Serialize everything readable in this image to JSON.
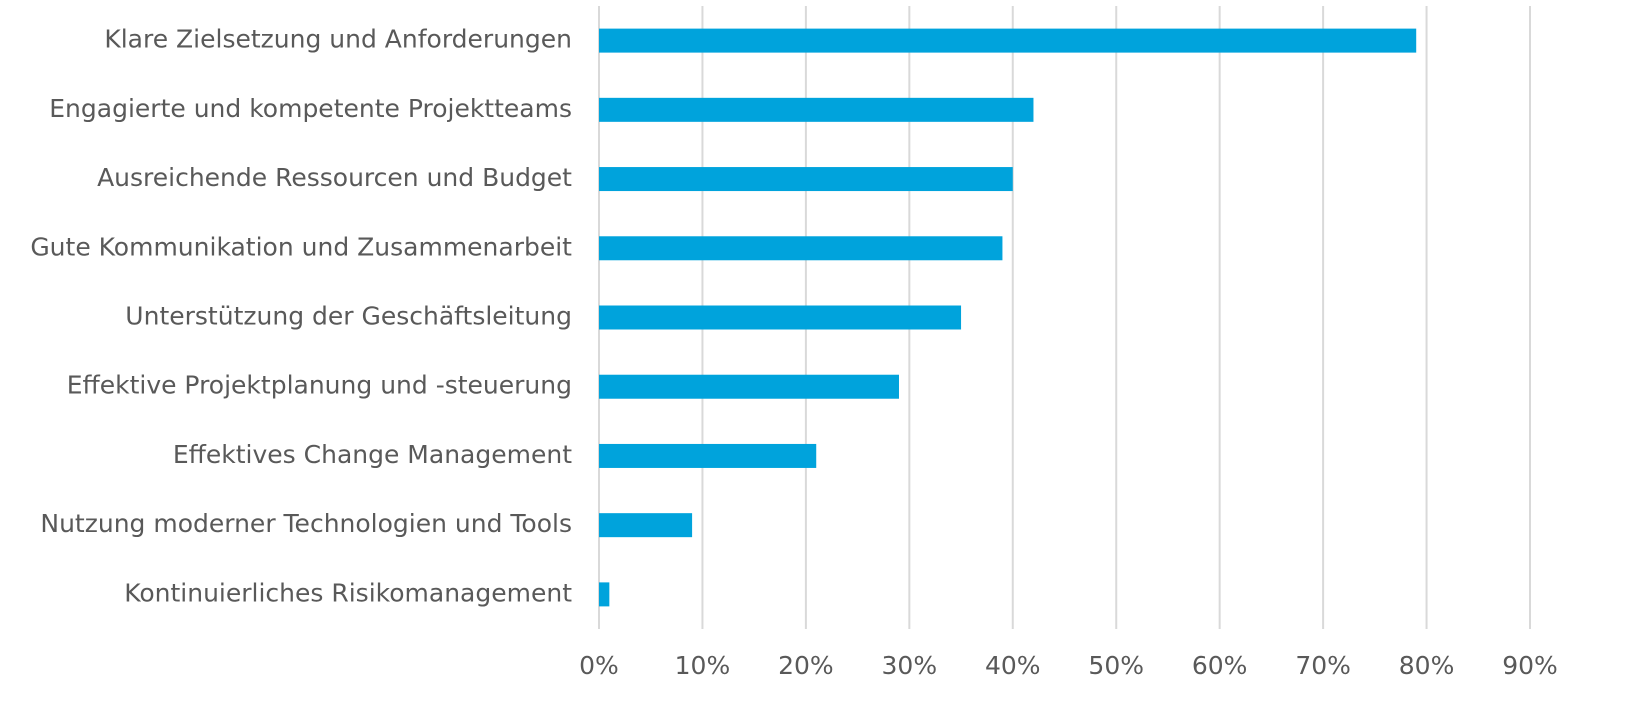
{
  "chart_data": {
    "type": "bar",
    "orientation": "horizontal",
    "categories": [
      "Klare Zielsetzung und Anforderungen",
      "Engagierte und kompetente Projektteams",
      "Ausreichende Ressourcen und Budget",
      "Gute Kommunikation und Zusammenarbeit",
      "Unterstützung der Geschäftsleitung",
      "Effektive Projektplanung und -steuerung",
      "Effektives Change Management",
      "Nutzung moderner Technologien und Tools",
      "Kontinuierliches Risikomanagement"
    ],
    "values": [
      79,
      42,
      40,
      39,
      35,
      29,
      21,
      9,
      1
    ],
    "color": "#00a3dc",
    "xlim": [
      0,
      90
    ],
    "xticks": [
      {
        "value": 0,
        "label": "0%"
      },
      {
        "value": 10,
        "label": "10%"
      },
      {
        "value": 20,
        "label": "20%"
      },
      {
        "value": 30,
        "label": "30%"
      },
      {
        "value": 40,
        "label": "40%"
      },
      {
        "value": 50,
        "label": "50%"
      },
      {
        "value": 60,
        "label": "60%"
      },
      {
        "value": 70,
        "label": "70%"
      },
      {
        "value": 80,
        "label": "80%"
      },
      {
        "value": 90,
        "label": "90%"
      }
    ],
    "grid": true
  }
}
